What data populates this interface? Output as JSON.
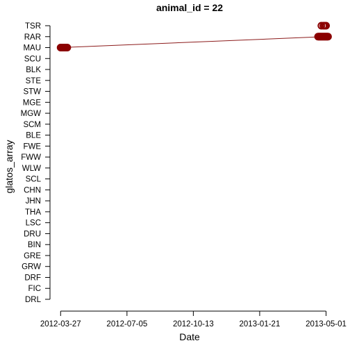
{
  "chart_data": {
    "type": "line",
    "title": "animal_id = 22",
    "xlabel": "Date",
    "ylabel": "glatos_array",
    "grid": false,
    "legend": "none",
    "y_categories": [
      "DRL",
      "FIC",
      "DRF",
      "GRW",
      "GRE",
      "BIN",
      "DRU",
      "LSC",
      "THA",
      "JHN",
      "CHN",
      "SCL",
      "WLW",
      "FWW",
      "FWE",
      "BLE",
      "SCM",
      "MGW",
      "MGE",
      "STW",
      "STE",
      "BLK",
      "SCU",
      "MAU",
      "RAR",
      "TSR"
    ],
    "x_ticks": [
      "2012-03-27",
      "2012-07-05",
      "2012-10-13",
      "2013-01-21",
      "2013-05-01"
    ],
    "xlim": [
      "2012-03-11",
      "2013-05-12"
    ],
    "colors": {
      "line": "#8b1a1a",
      "marker": "#8b0000",
      "axis": "#000000"
    },
    "detections": [
      {
        "date": "2012-03-27",
        "array": "MAU"
      },
      {
        "date": "2012-03-28",
        "array": "MAU"
      },
      {
        "date": "2012-03-29",
        "array": "MAU"
      },
      {
        "date": "2012-03-30",
        "array": "MAU"
      },
      {
        "date": "2012-03-31",
        "array": "MAU"
      },
      {
        "date": "2012-04-01",
        "array": "MAU"
      },
      {
        "date": "2012-04-02",
        "array": "MAU"
      },
      {
        "date": "2012-04-03",
        "array": "MAU"
      },
      {
        "date": "2012-04-04",
        "array": "MAU"
      },
      {
        "date": "2012-04-05",
        "array": "MAU"
      },
      {
        "date": "2012-04-06",
        "array": "MAU"
      },
      {
        "date": "2013-04-19",
        "array": "RAR"
      },
      {
        "date": "2013-04-20",
        "array": "RAR"
      },
      {
        "date": "2013-04-21",
        "array": "RAR"
      },
      {
        "date": "2013-04-22",
        "array": "RAR"
      },
      {
        "date": "2013-04-23",
        "array": "RAR"
      },
      {
        "date": "2013-04-24",
        "array": "RAR"
      },
      {
        "date": "2013-04-24",
        "array": "TSR"
      },
      {
        "date": "2013-04-25",
        "array": "RAR"
      },
      {
        "date": "2013-04-26",
        "array": "RAR"
      },
      {
        "date": "2013-04-27",
        "array": "RAR"
      },
      {
        "date": "2013-04-27",
        "array": "TSR"
      },
      {
        "date": "2013-04-28",
        "array": "RAR"
      },
      {
        "date": "2013-04-29",
        "array": "RAR"
      },
      {
        "date": "2013-04-29",
        "array": "TSR"
      },
      {
        "date": "2013-04-30",
        "array": "RAR"
      },
      {
        "date": "2013-05-01",
        "array": "RAR"
      },
      {
        "date": "2013-05-01",
        "array": "TSR"
      },
      {
        "date": "2013-05-02",
        "array": "RAR"
      },
      {
        "date": "2013-05-03",
        "array": "RAR"
      },
      {
        "date": "2013-05-04",
        "array": "RAR"
      }
    ],
    "path": [
      {
        "date": "2012-03-27",
        "array": "MAU"
      },
      {
        "date": "2013-04-29",
        "array": "RAR"
      }
    ]
  }
}
